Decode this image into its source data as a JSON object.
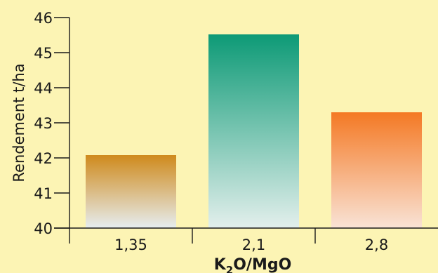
{
  "chart_data": {
    "type": "bar",
    "categories": [
      "1,35",
      "2,1",
      "2,8"
    ],
    "values": [
      42.08,
      45.52,
      43.3
    ],
    "ylabel": "Rendement t/ha",
    "xlabel": {
      "prefix": "K",
      "subscript": "2",
      "suffix": "O/MgO"
    },
    "ylim": [
      40,
      46
    ],
    "yticks": [
      "40",
      "41",
      "42",
      "43",
      "44",
      "45",
      "46"
    ],
    "grid": false,
    "legend": "none",
    "bar_colors": [
      {
        "top": "#cf8a1c",
        "bottom": "#e6edef"
      },
      {
        "top": "#0d9a76",
        "bottom": "#e3efec"
      },
      {
        "top": "#f47924",
        "bottom": "#f9e3d6"
      }
    ],
    "background": "#fcf4b4"
  }
}
